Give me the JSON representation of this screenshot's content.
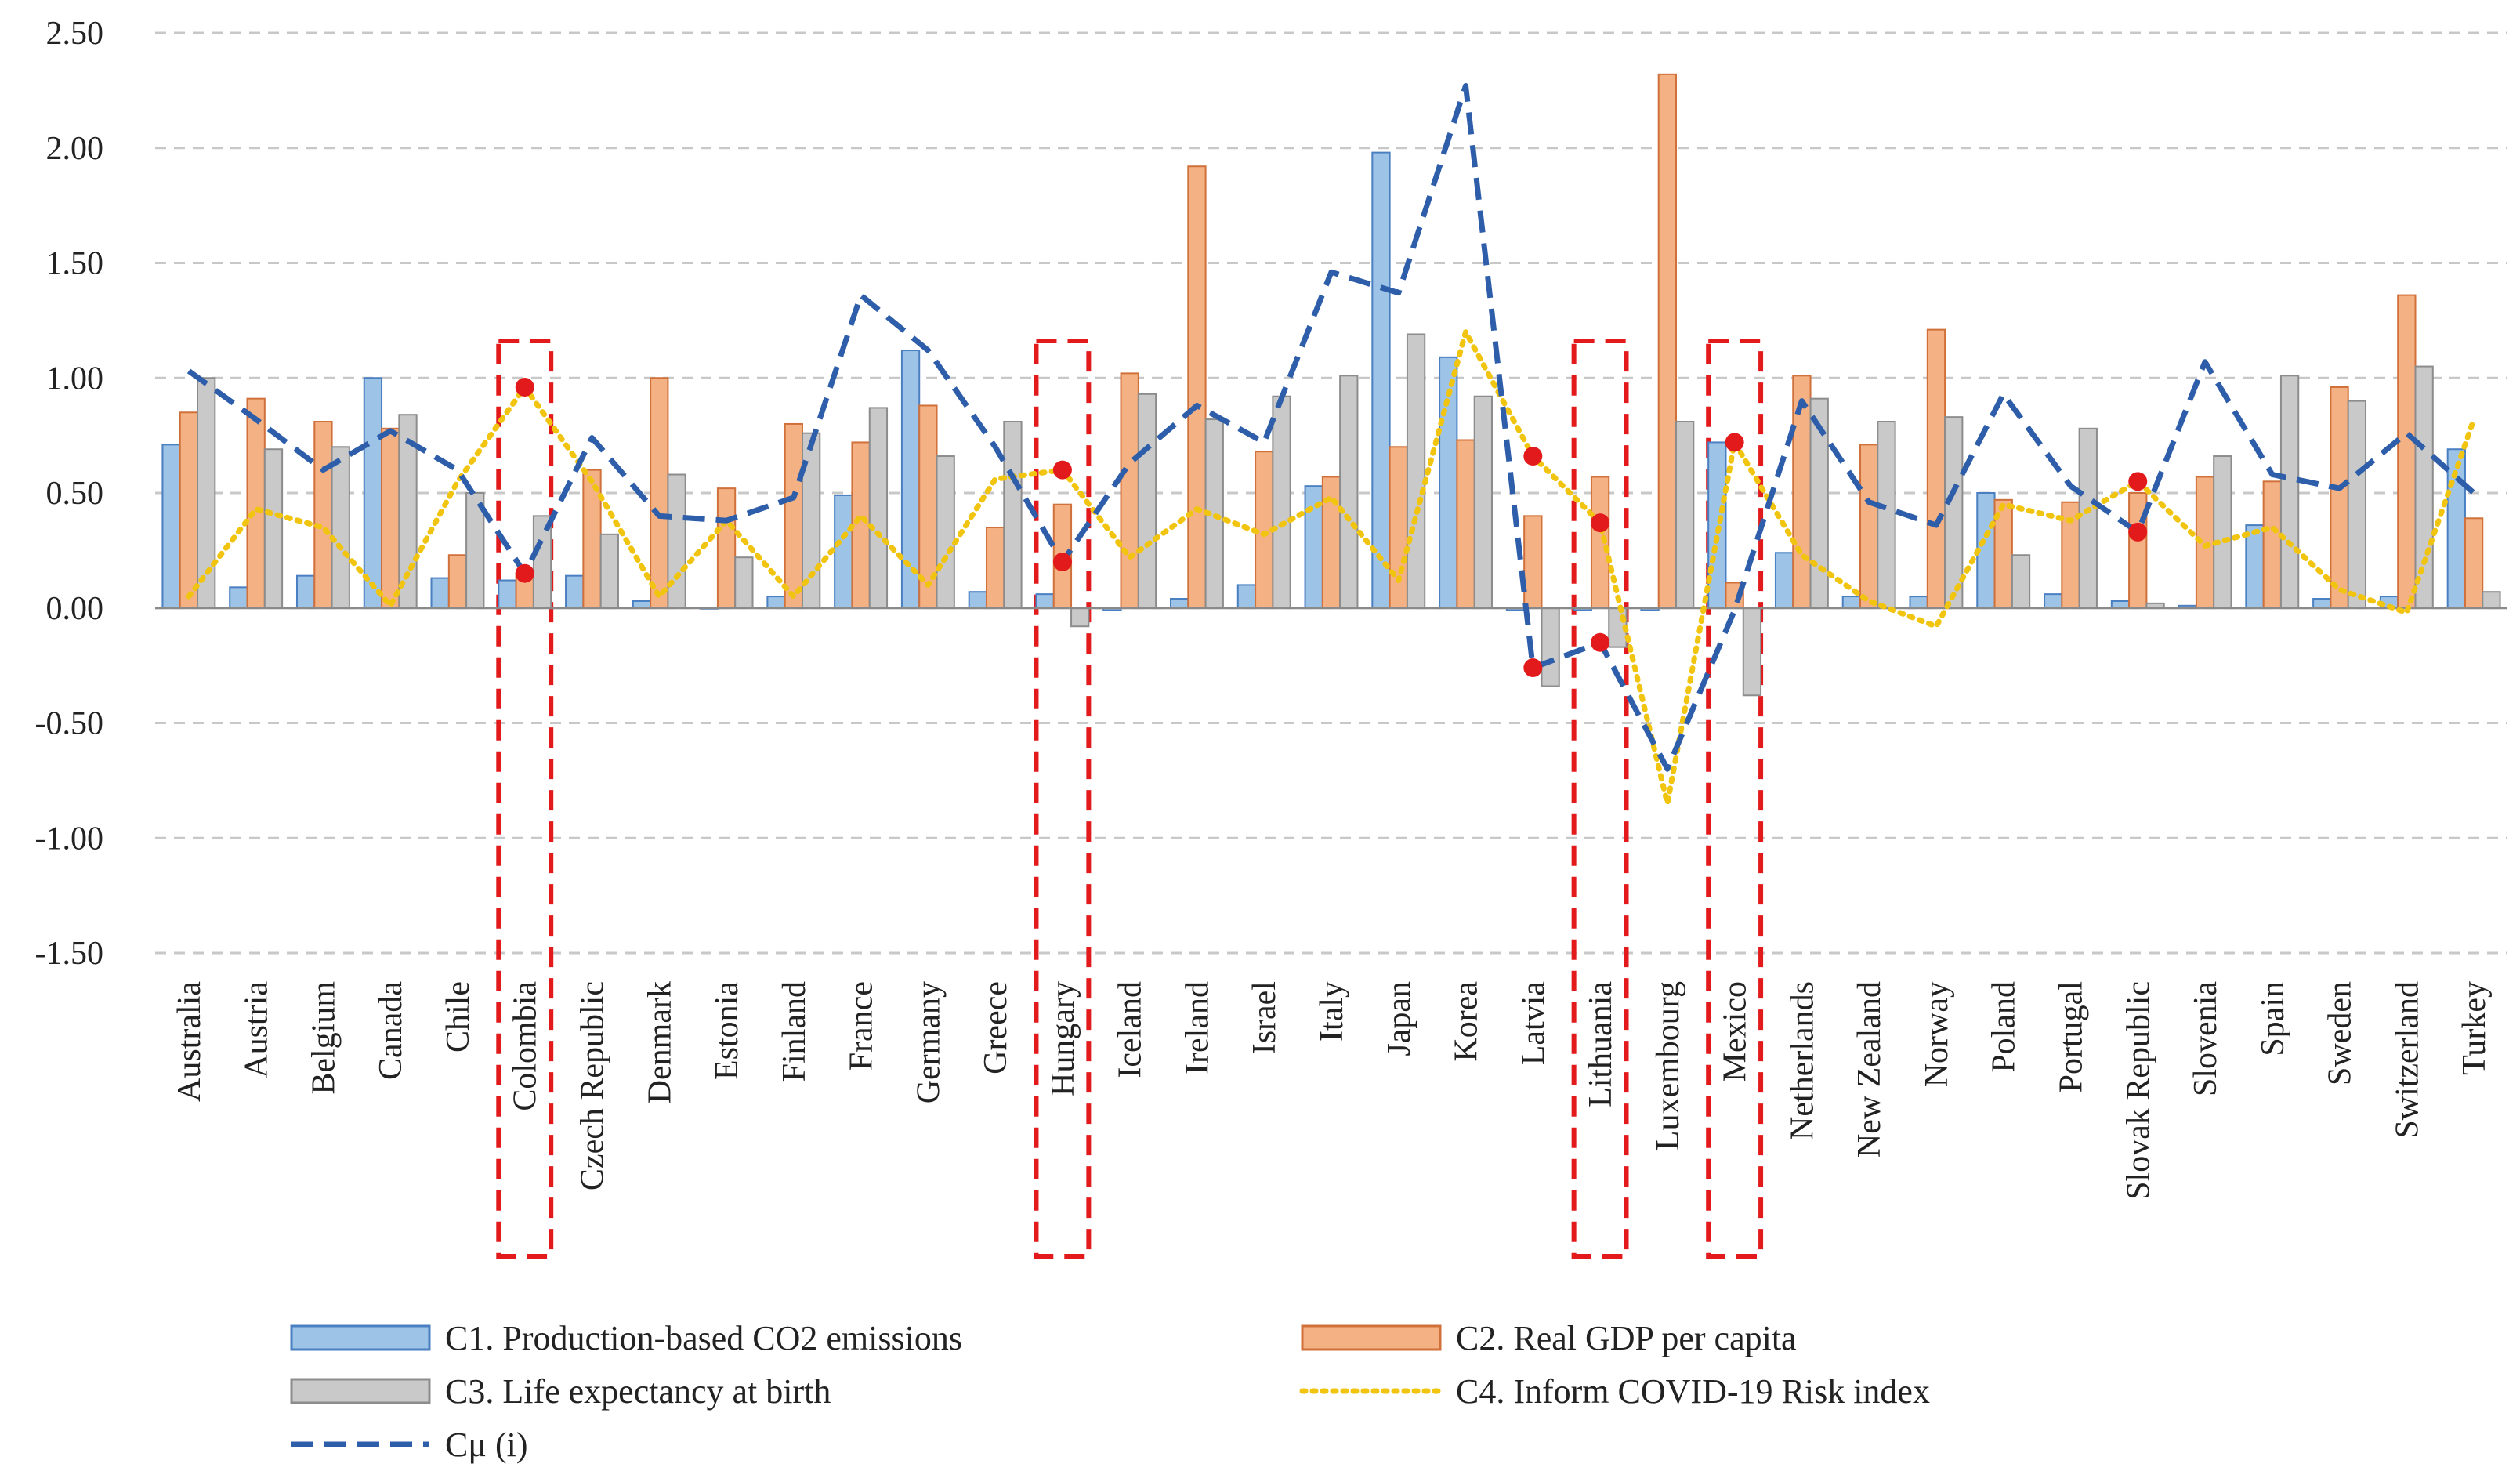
{
  "chart_data": {
    "type": "bar",
    "title": "",
    "xlabel": "",
    "ylabel": "",
    "ylim": [
      -1.5,
      2.5
    ],
    "yticks": [
      2.5,
      2.0,
      1.5,
      1.0,
      0.5,
      0.0,
      -0.5,
      -1.0,
      -1.5
    ],
    "ytick_labels": [
      "2.50",
      "2.00",
      "1.50",
      "1.00",
      "0.50",
      "0.00",
      "-0.50",
      "-1.00",
      "-1.50"
    ],
    "grid": true,
    "legend_position": "bottom",
    "categories": [
      "Australia",
      "Austria",
      "Belgium",
      "Canada",
      "Chile",
      "Colombia",
      "Czech Republic",
      "Denmark",
      "Estonia",
      "Finland",
      "France",
      "Germany",
      "Greece",
      "Hungary",
      "Iceland",
      "Ireland",
      "Israel",
      "Italy",
      "Japan",
      "Korea",
      "Latvia",
      "Lithuania",
      "Luxembourg",
      "Mexico",
      "Netherlands",
      "New Zealand",
      "Norway",
      "Poland",
      "Portugal",
      "Slovak Republic",
      "Slovenia",
      "Spain",
      "Sweden",
      "Switzerland",
      "Turkey"
    ],
    "series": [
      {
        "name": "C1. Production-based CO2 emissions",
        "kind": "bar",
        "color": "#9dc3e6",
        "edge": "#4a7fc1",
        "values": [
          0.71,
          0.09,
          0.14,
          1.0,
          0.13,
          0.12,
          0.14,
          0.03,
          0.0,
          0.05,
          0.49,
          1.12,
          0.07,
          0.06,
          -0.01,
          0.04,
          0.1,
          0.53,
          1.98,
          1.09,
          -0.01,
          -0.01,
          -0.01,
          0.72,
          0.24,
          0.05,
          0.05,
          0.5,
          0.06,
          0.03,
          0.01,
          0.36,
          0.04,
          0.05,
          0.69
        ]
      },
      {
        "name": "C2. Real GDP per capita",
        "kind": "bar",
        "color": "#f4b183",
        "edge": "#d0703a",
        "values": [
          0.85,
          0.91,
          0.81,
          0.78,
          0.23,
          0.15,
          0.6,
          1.0,
          0.52,
          0.8,
          0.72,
          0.88,
          0.35,
          0.45,
          1.02,
          1.92,
          0.68,
          0.57,
          0.7,
          0.73,
          0.4,
          0.57,
          2.32,
          0.11,
          1.01,
          0.71,
          1.21,
          0.47,
          0.46,
          0.5,
          0.57,
          0.55,
          0.96,
          1.36,
          0.39
        ]
      },
      {
        "name": "C3. Life expectancy at birth",
        "kind": "bar",
        "color": "#c9c9c9",
        "edge": "#8c8c8c",
        "values": [
          1.0,
          0.69,
          0.7,
          0.84,
          0.5,
          0.4,
          0.32,
          0.58,
          0.22,
          0.76,
          0.87,
          0.66,
          0.81,
          -0.08,
          0.93,
          0.82,
          0.92,
          1.01,
          1.19,
          0.92,
          -0.34,
          -0.17,
          0.81,
          -0.38,
          0.91,
          0.81,
          0.83,
          0.23,
          0.78,
          0.02,
          0.66,
          1.01,
          0.9,
          1.05,
          0.07
        ]
      },
      {
        "name": "C4. Inform COVID-19 Risk index",
        "kind": "line",
        "style": "dotted",
        "color": "#f1c40f",
        "values": [
          0.05,
          0.43,
          0.35,
          0.01,
          0.55,
          0.96,
          0.55,
          0.05,
          0.38,
          0.05,
          0.4,
          0.1,
          0.56,
          0.6,
          0.22,
          0.43,
          0.32,
          0.48,
          0.12,
          1.2,
          0.66,
          0.37,
          -0.85,
          0.72,
          0.23,
          0.03,
          -0.08,
          0.45,
          0.38,
          0.55,
          0.27,
          0.35,
          0.08,
          -0.02,
          0.82
        ]
      },
      {
        "name": "Cμ (i)",
        "kind": "line",
        "style": "dashed",
        "color": "#2e5eaa",
        "values": [
          1.03,
          0.82,
          0.6,
          0.77,
          0.6,
          0.15,
          0.74,
          0.4,
          0.38,
          0.48,
          1.36,
          1.12,
          0.7,
          0.2,
          0.63,
          0.88,
          0.72,
          1.46,
          1.37,
          2.27,
          -0.26,
          -0.15,
          -0.7,
          -0.01,
          0.9,
          0.46,
          0.36,
          0.93,
          0.53,
          0.33,
          1.07,
          0.58,
          0.52,
          0.76,
          0.5
        ]
      }
    ],
    "highlight_boxes": [
      "Colombia",
      "Hungary",
      "Lithuania",
      "Mexico"
    ],
    "highlight_points": [
      {
        "category": "Colombia",
        "series": "C4. Inform COVID-19 Risk index"
      },
      {
        "category": "Colombia",
        "series": "Cμ (i)"
      },
      {
        "category": "Hungary",
        "series": "C4. Inform COVID-19 Risk index"
      },
      {
        "category": "Hungary",
        "series": "Cμ (i)"
      },
      {
        "category": "Latvia",
        "series": "C4. Inform COVID-19 Risk index"
      },
      {
        "category": "Latvia",
        "series": "Cμ (i)"
      },
      {
        "category": "Lithuania",
        "series": "C4. Inform COVID-19 Risk index"
      },
      {
        "category": "Lithuania",
        "series": "Cμ (i)"
      },
      {
        "category": "Mexico",
        "series": "C4. Inform COVID-19 Risk index"
      },
      {
        "category": "Slovak Republic",
        "series": "C4. Inform COVID-19 Risk index"
      },
      {
        "category": "Slovak Republic",
        "series": "Cμ (i)"
      }
    ],
    "highlight_color": "#e31a1c"
  }
}
